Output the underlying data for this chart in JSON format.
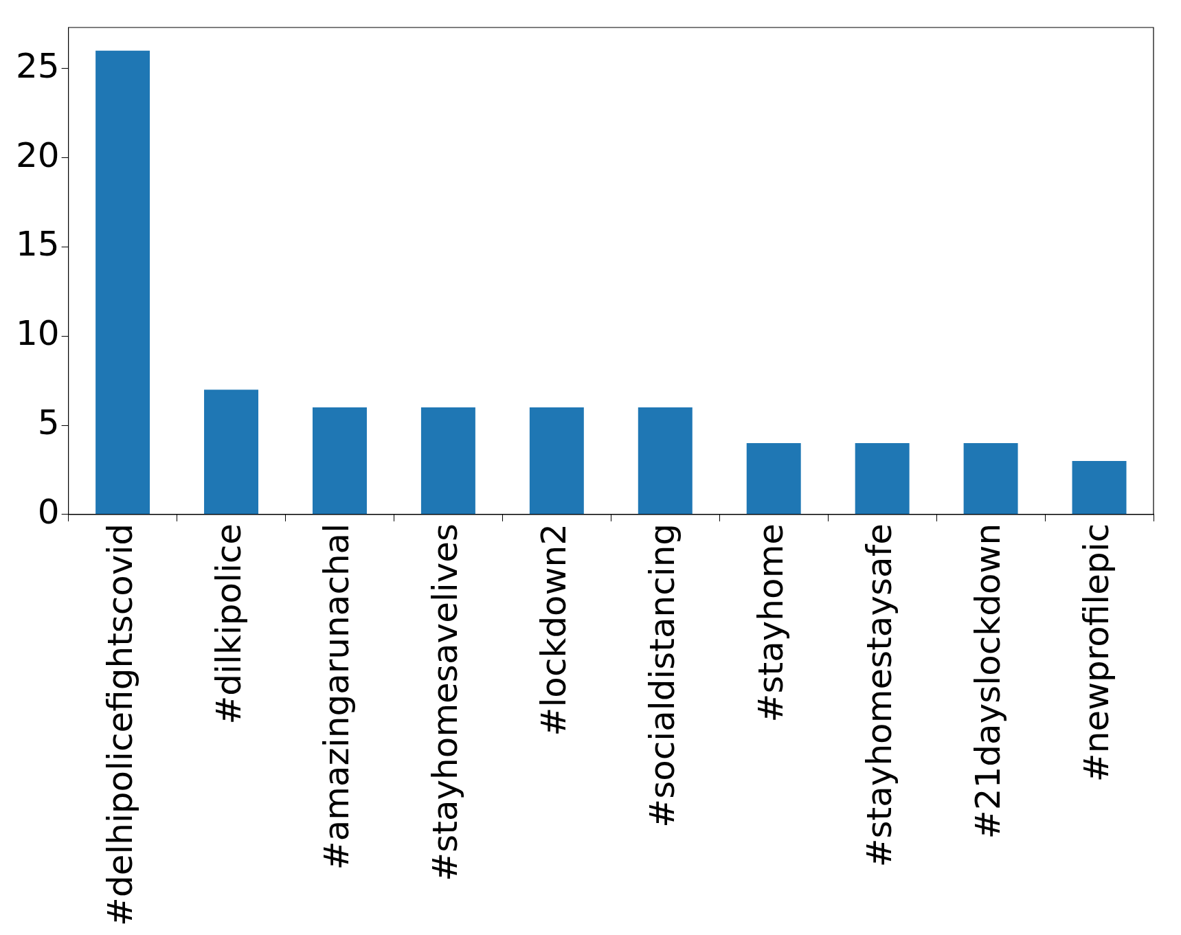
{
  "chart_data": {
    "type": "bar",
    "categories": [
      "#delhipolicefightscovid",
      "#dilkipolice",
      "#amazingarunachal",
      "#stayhomesavelives",
      "#lockdown2",
      "#socialdistancing",
      "#stayhome",
      "#stayhomestaysafe",
      "#21dayslockdown",
      "#newprofilepic"
    ],
    "values": [
      26,
      7,
      6,
      6,
      6,
      6,
      4,
      4,
      4,
      3
    ],
    "color": "#1f77b4",
    "ylim": [
      0,
      27.3
    ],
    "yticks": [
      0,
      5,
      10,
      15,
      20,
      25
    ],
    "grid": false,
    "legend": false
  }
}
